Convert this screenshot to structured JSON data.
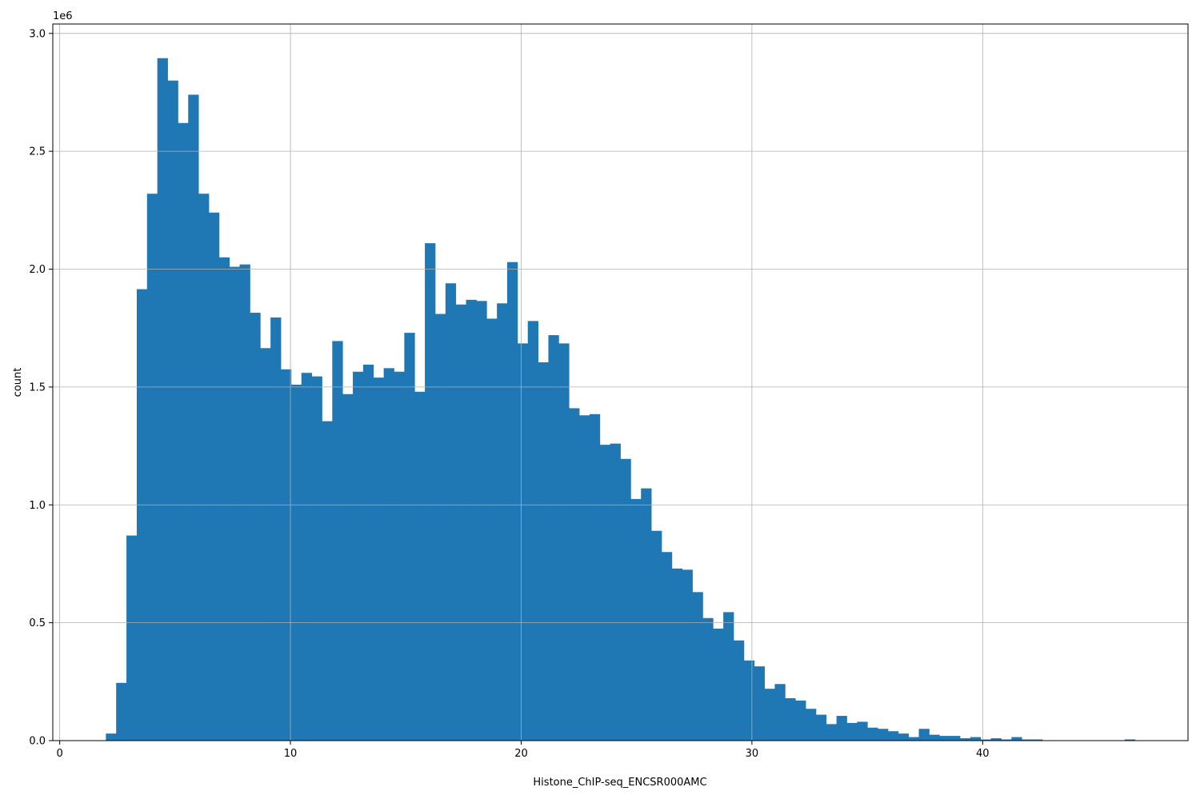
{
  "chart_data": {
    "type": "bar",
    "subtype": "histogram",
    "title": "",
    "xlabel": "Histone_ChIP-seq_ENCSR000AMC",
    "ylabel": "count",
    "y_offset_label": "1e6",
    "y_scale": 1000000,
    "xlim": [
      -0.3,
      48.9
    ],
    "ylim": [
      0,
      3.04
    ],
    "x_ticks": [
      0,
      10,
      20,
      30,
      40
    ],
    "x_tick_labels": [
      "0",
      "10",
      "20",
      "30",
      "40"
    ],
    "y_ticks": [
      0,
      0.5,
      1.0,
      1.5,
      2.0,
      2.5,
      3.0
    ],
    "y_tick_labels": [
      "0.0",
      "0.5",
      "1.0",
      "1.5",
      "2.0",
      "2.5",
      "3.0"
    ],
    "grid": true,
    "bar_color": "#1f77b4",
    "bin_start": 2.0,
    "bin_width": 0.446,
    "values": [
      0.03,
      0.245,
      0.87,
      1.915,
      2.32,
      2.895,
      2.8,
      2.62,
      2.74,
      2.32,
      2.24,
      2.05,
      2.01,
      2.02,
      1.815,
      1.665,
      1.795,
      1.575,
      1.51,
      1.56,
      1.545,
      1.355,
      1.695,
      1.47,
      1.565,
      1.595,
      1.54,
      1.58,
      1.565,
      1.73,
      1.48,
      2.11,
      1.81,
      1.94,
      1.85,
      1.87,
      1.865,
      1.79,
      1.855,
      2.03,
      1.685,
      1.78,
      1.605,
      1.72,
      1.685,
      1.41,
      1.38,
      1.385,
      1.255,
      1.26,
      1.195,
      1.025,
      1.07,
      0.89,
      0.8,
      0.73,
      0.725,
      0.63,
      0.52,
      0.475,
      0.545,
      0.425,
      0.34,
      0.315,
      0.22,
      0.24,
      0.18,
      0.17,
      0.135,
      0.11,
      0.07,
      0.105,
      0.075,
      0.08,
      0.055,
      0.05,
      0.04,
      0.03,
      0.015,
      0.05,
      0.025,
      0.02,
      0.02,
      0.01,
      0.015,
      0.005,
      0.01,
      0.005,
      0.015,
      0.005,
      0.005,
      0,
      0,
      0,
      0,
      0,
      0,
      0,
      0,
      0.005,
      0,
      0,
      0,
      0
    ]
  }
}
